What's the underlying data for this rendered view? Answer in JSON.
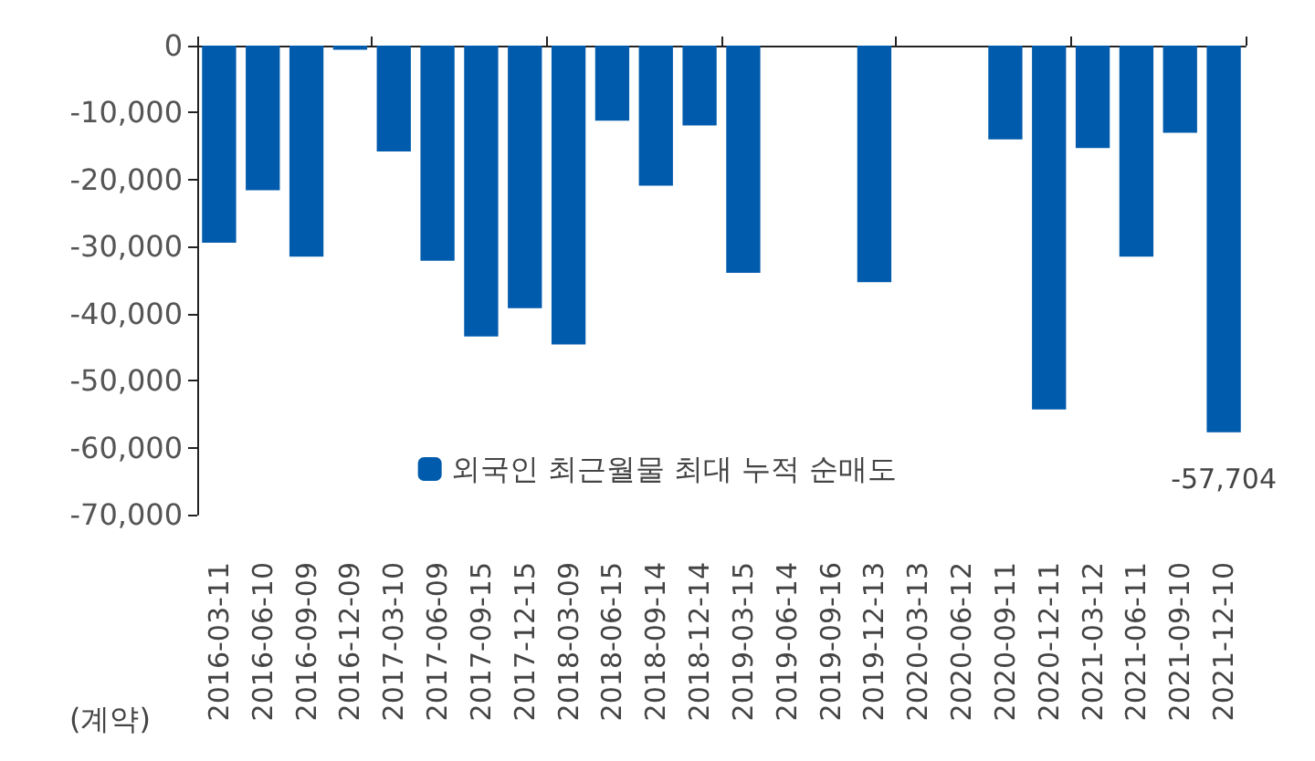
{
  "chart_data": {
    "type": "bar",
    "categories": [
      "2016-03-11",
      "2016-06-10",
      "2016-09-09",
      "2016-12-09",
      "2017-03-10",
      "2017-06-09",
      "2017-09-15",
      "2017-12-15",
      "2018-03-09",
      "2018-06-15",
      "2018-09-14",
      "2018-12-14",
      "2019-03-15",
      "2019-06-14",
      "2019-09-16",
      "2019-12-13",
      "2020-03-13",
      "2020-06-12",
      "2020-09-11",
      "2020-12-11",
      "2021-03-12",
      "2021-06-11",
      "2021-09-10",
      "2021-12-10"
    ],
    "series": [
      {
        "name": "외국인 최근월물 최대 누적 순매도",
        "color": "#005bac",
        "values": [
          -29400,
          -21600,
          -31500,
          -600,
          -15800,
          -32100,
          -43400,
          -39200,
          -44600,
          -11200,
          -20900,
          -11900,
          -33900,
          null,
          null,
          -35300,
          null,
          null,
          -14000,
          -54300,
          -15300,
          -31500,
          -13000,
          -57704
        ],
        "value_labels": [
          null,
          null,
          null,
          null,
          null,
          null,
          null,
          null,
          null,
          null,
          null,
          null,
          null,
          null,
          null,
          null,
          null,
          null,
          null,
          null,
          null,
          null,
          null,
          "-57,704"
        ]
      }
    ],
    "ylim": [
      -70000,
      0
    ],
    "yticks": [
      0,
      {
        "value": -10000,
        "label": "-10,000"
      },
      {
        "value": -20000,
        "label": "-20,000"
      },
      {
        "value": -30000,
        "label": "-30,000"
      },
      {
        "value": -40000,
        "label": "-40,000"
      },
      {
        "value": -50000,
        "label": "-50,000"
      },
      {
        "value": -60000,
        "label": "-60,000"
      },
      {
        "value": -70000,
        "label": "-70,000"
      }
    ],
    "grid": false,
    "legend": "bottom",
    "annotations": [
      "(계약)"
    ]
  }
}
